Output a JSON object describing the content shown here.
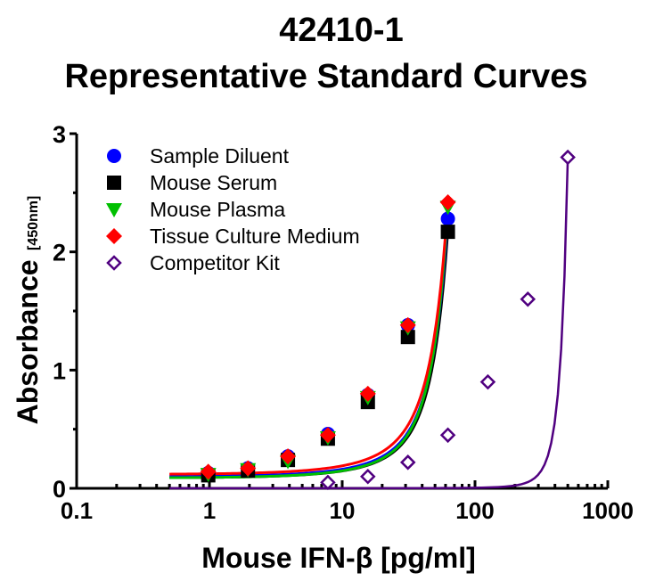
{
  "chart_data": {
    "type": "scatter",
    "title": "42410-1",
    "subtitle": "Representative Standard Curves",
    "xlabel": "Mouse IFN-β [pg/ml]",
    "ylabel_main": "Absorbance",
    "ylabel_sub": "[450nm]",
    "x_scale": "log",
    "xlim": [
      0.1,
      1000
    ],
    "ylim": [
      0,
      3
    ],
    "x_ticks": [
      0.1,
      1,
      10,
      100,
      1000
    ],
    "x_tick_labels": [
      "0.1",
      "1",
      "10",
      "100",
      "1000"
    ],
    "y_ticks": [
      0,
      1,
      2,
      3
    ],
    "y_tick_labels": [
      "0",
      "1",
      "2",
      "3"
    ],
    "grid": false,
    "legend_position": "top-left",
    "series": [
      {
        "name": "Sample Diluent",
        "marker": "circle",
        "color": "#0000ff",
        "line_color": "#0000ff",
        "x": [
          0.98,
          1.95,
          3.9,
          7.8,
          15.6,
          31.25,
          62.5
        ],
        "y": [
          0.13,
          0.17,
          0.27,
          0.46,
          0.79,
          1.38,
          2.28
        ],
        "fit_x": [
          0.5,
          62.5
        ],
        "fit_y": [
          0.1,
          2.3
        ]
      },
      {
        "name": "Mouse Serum",
        "marker": "square",
        "color": "#000000",
        "line_color": "#000000",
        "x": [
          0.98,
          1.95,
          3.9,
          7.8,
          15.6,
          31.25,
          62.5
        ],
        "y": [
          0.11,
          0.15,
          0.24,
          0.42,
          0.73,
          1.28,
          2.17
        ],
        "fit_x": [
          0.5,
          62.5
        ],
        "fit_y": [
          0.09,
          2.19
        ]
      },
      {
        "name": "Mouse Plasma",
        "marker": "triangle-down",
        "color": "#00c000",
        "line_color": "#00c000",
        "x": [
          0.98,
          1.95,
          3.9,
          7.8,
          15.6,
          31.25,
          62.5
        ],
        "y": [
          0.12,
          0.16,
          0.23,
          0.43,
          0.77,
          1.36,
          2.38
        ],
        "fit_x": [
          0.5,
          62.5
        ],
        "fit_y": [
          0.09,
          2.38
        ]
      },
      {
        "name": "Tissue Culture Medium",
        "marker": "diamond",
        "color": "#ff0000",
        "line_color": "#ff0000",
        "x": [
          0.98,
          1.95,
          3.9,
          7.8,
          15.6,
          31.25,
          62.5
        ],
        "y": [
          0.14,
          0.17,
          0.27,
          0.45,
          0.8,
          1.38,
          2.42
        ],
        "fit_x": [
          0.5,
          62.5
        ],
        "fit_y": [
          0.12,
          2.43
        ]
      },
      {
        "name": "Competitor Kit",
        "marker": "diamond-open",
        "color": "#500080",
        "line_color": "#500080",
        "x": [
          7.8,
          15.6,
          31.25,
          62.5,
          125,
          250,
          500
        ],
        "y": [
          0.05,
          0.1,
          0.22,
          0.45,
          0.9,
          1.6,
          2.8
        ],
        "fit_x": [
          0.5,
          500
        ],
        "fit_y": [
          0.0,
          2.8
        ]
      }
    ]
  }
}
